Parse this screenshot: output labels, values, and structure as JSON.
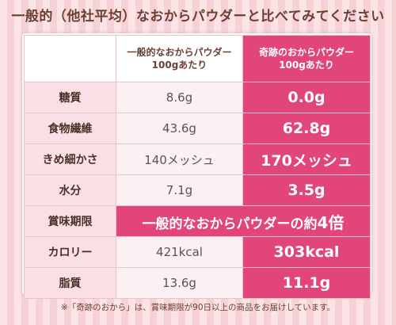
{
  "title": "一般的（他社平均）なおからパウダーと比べてみてください",
  "headers": {
    "generic": [
      "一般的なおからパウダー",
      "100gあたり"
    ],
    "miracle": [
      "奇跡のおからパウダー",
      "100gあたり"
    ]
  },
  "rows": [
    {
      "label": "糖質",
      "generic": "8.6g",
      "miracle": "0.0g"
    },
    {
      "label": "食物繊維",
      "generic": "43.6g",
      "miracle": "62.8g"
    },
    {
      "label": "きめ細かさ",
      "generic": "140メッシュ",
      "miracle": "170メッシュ"
    },
    {
      "label": "水分",
      "generic": "7.1g",
      "miracle": "3.5g"
    },
    {
      "label": "賞味期限",
      "span_prefix": "一般的なおからパウダーの約",
      "span_big": "4倍"
    },
    {
      "label": "カロリー",
      "generic": "421kcal",
      "miracle": "303kcal"
    },
    {
      "label": "脂質",
      "generic": "13.6g",
      "miracle": "11.1g"
    }
  ],
  "note": "※「奇跡のおから」は、賞味期限が90日以上の商品をお届けしています。",
  "colors": {
    "accent": "#e2457a",
    "label_bg": "#fae0e4",
    "text_brown": "#6b3f33"
  }
}
